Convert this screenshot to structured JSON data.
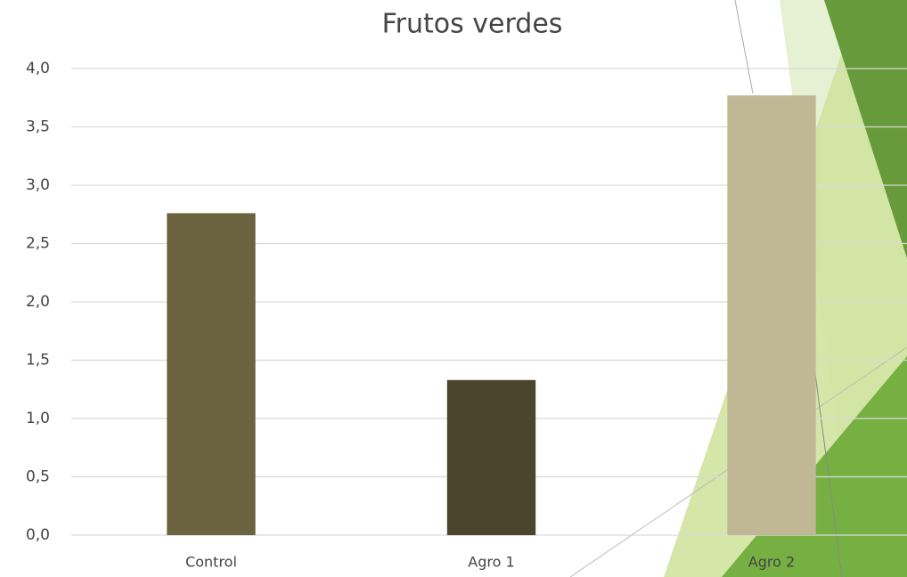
{
  "chart_data": {
    "type": "bar",
    "title": "Frutos verdes",
    "categories": [
      "Control",
      "Agro 1",
      "Agro 2"
    ],
    "values": [
      2.76,
      1.33,
      3.77
    ],
    "colors": [
      "#6b6340",
      "#4a452c",
      "#c0b895"
    ],
    "ylim": [
      0,
      4
    ],
    "yticks": [
      {
        "value": 0,
        "label": "0,0"
      },
      {
        "value": 0.5,
        "label": "0,5"
      },
      {
        "value": 1,
        "label": "1,0"
      },
      {
        "value": 1.5,
        "label": "1,5"
      },
      {
        "value": 2,
        "label": "2,0"
      },
      {
        "value": 2.5,
        "label": "2,5"
      },
      {
        "value": 3,
        "label": "3,0"
      },
      {
        "value": 3.5,
        "label": "3,5"
      },
      {
        "value": 4,
        "label": "4,0"
      }
    ],
    "grid": true
  }
}
